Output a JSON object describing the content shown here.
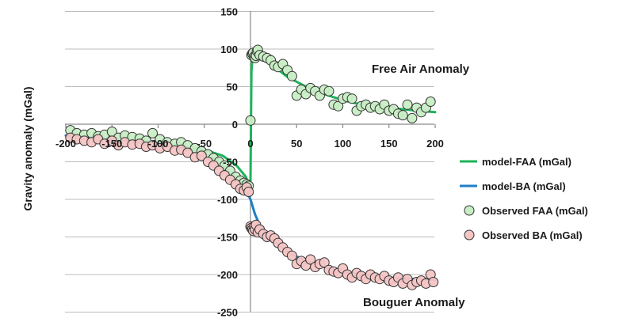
{
  "chart_data": {
    "type": "scatter",
    "xlabel": "",
    "ylabel": "Gravity anomaly (mGal)",
    "xlim": [
      -200,
      200
    ],
    "ylim": [
      -250,
      150
    ],
    "xticks": [
      -200,
      -150,
      -100,
      -50,
      0,
      50,
      100,
      150,
      200
    ],
    "yticks": [
      150,
      100,
      50,
      0,
      -50,
      -100,
      -150,
      -200,
      -250
    ],
    "grid": true,
    "legend_position": "right",
    "annotations": [
      {
        "text": "Free Air  Anomaly",
        "x": 130,
        "y": 73
      },
      {
        "text": "Bouguer Anomaly",
        "x": 125,
        "y": -238
      }
    ],
    "series": [
      {
        "name": "model-FAA (mGal)",
        "kind": "line",
        "color": "#1db35a",
        "x": [
          -200,
          -150,
          -100,
          -50,
          -30,
          -15,
          -5,
          -2,
          0,
          1,
          2,
          5,
          10,
          20,
          40,
          60,
          80,
          100,
          120,
          150,
          180,
          200
        ],
        "y": [
          -15,
          -19,
          -24,
          -34,
          -42,
          -55,
          -70,
          -80,
          -78,
          70,
          88,
          93,
          90,
          82,
          63,
          50,
          40,
          32,
          26,
          22,
          18,
          16
        ]
      },
      {
        "name": "model-BA (mGal)",
        "kind": "line",
        "color": "#1f7fc4",
        "x": [
          -200,
          -150,
          -100,
          -50,
          -30,
          -15,
          -5,
          0,
          5,
          10,
          20,
          40,
          60,
          80,
          100,
          120,
          150,
          180,
          200
        ],
        "y": [
          -15,
          -20,
          -25,
          -38,
          -55,
          -73,
          -87,
          -100,
          -120,
          -134,
          -150,
          -170,
          -182,
          -190,
          -196,
          -200,
          -204,
          -206,
          -207
        ]
      },
      {
        "name": "Observed FAA (mGal)",
        "kind": "scatter",
        "color": "#c8eec5",
        "x": [
          -195,
          -188,
          -180,
          -172,
          -165,
          -158,
          -150,
          -143,
          -136,
          -128,
          -120,
          -113,
          -106,
          -98,
          -90,
          -82,
          -75,
          -68,
          -60,
          -53,
          -46,
          -40,
          -34,
          -28,
          -22,
          -16,
          -11,
          -7,
          -4,
          -2,
          0,
          1,
          2,
          3,
          4,
          5,
          6,
          7,
          8,
          10,
          14,
          18,
          22,
          26,
          30,
          35,
          40,
          45,
          50,
          55,
          60,
          65,
          70,
          75,
          80,
          85,
          90,
          95,
          100,
          105,
          110,
          115,
          120,
          125,
          130,
          135,
          140,
          145,
          150,
          155,
          160,
          165,
          170,
          175,
          180,
          185,
          190,
          195
        ],
        "y": [
          -8,
          -12,
          -14,
          -12,
          -16,
          -14,
          -10,
          -18,
          -15,
          -17,
          -19,
          -22,
          -12,
          -20,
          -24,
          -26,
          -24,
          -28,
          -32,
          -36,
          -40,
          -45,
          -50,
          -55,
          -62,
          -70,
          -75,
          -78,
          -80,
          -82,
          5,
          92,
          94,
          95,
          90,
          88,
          91,
          97,
          99,
          92,
          90,
          88,
          85,
          78,
          76,
          80,
          72,
          64,
          38,
          46,
          40,
          48,
          44,
          38,
          46,
          44,
          26,
          24,
          34,
          36,
          34,
          18,
          24,
          26,
          22,
          24,
          20,
          26,
          18,
          20,
          14,
          12,
          26,
          8,
          22,
          16,
          22,
          30
        ]
      },
      {
        "name": "Observed BA (mGal)",
        "kind": "scatter",
        "color": "#f6c5c5",
        "x": [
          -195,
          -188,
          -180,
          -172,
          -165,
          -158,
          -150,
          -143,
          -136,
          -128,
          -120,
          -113,
          -106,
          -98,
          -90,
          -82,
          -75,
          -68,
          -60,
          -53,
          -46,
          -40,
          -34,
          -28,
          -22,
          -16,
          -11,
          -7,
          -4,
          -2,
          0,
          1,
          2,
          3,
          4,
          5,
          6,
          8,
          10,
          14,
          18,
          22,
          26,
          30,
          35,
          40,
          45,
          50,
          55,
          60,
          65,
          70,
          75,
          80,
          85,
          90,
          95,
          100,
          105,
          110,
          115,
          120,
          125,
          130,
          135,
          140,
          145,
          150,
          155,
          160,
          165,
          170,
          175,
          180,
          185,
          190,
          195,
          198
        ],
        "y": [
          -18,
          -20,
          -22,
          -24,
          -20,
          -26,
          -22,
          -28,
          -24,
          -27,
          -26,
          -30,
          -28,
          -32,
          -30,
          -35,
          -34,
          -38,
          -44,
          -42,
          -50,
          -55,
          -62,
          -68,
          -74,
          -80,
          -86,
          -88,
          -84,
          -90,
          -136,
          -138,
          -140,
          -142,
          -136,
          -140,
          -134,
          -144,
          -140,
          -146,
          -150,
          -148,
          -152,
          -158,
          -164,
          -170,
          -175,
          -186,
          -182,
          -188,
          -180,
          -190,
          -186,
          -184,
          -194,
          -196,
          -198,
          -192,
          -200,
          -204,
          -198,
          -202,
          -206,
          -200,
          -204,
          -206,
          -202,
          -208,
          -210,
          -204,
          -212,
          -206,
          -214,
          -210,
          -208,
          -212,
          -200,
          -210
        ]
      }
    ]
  }
}
